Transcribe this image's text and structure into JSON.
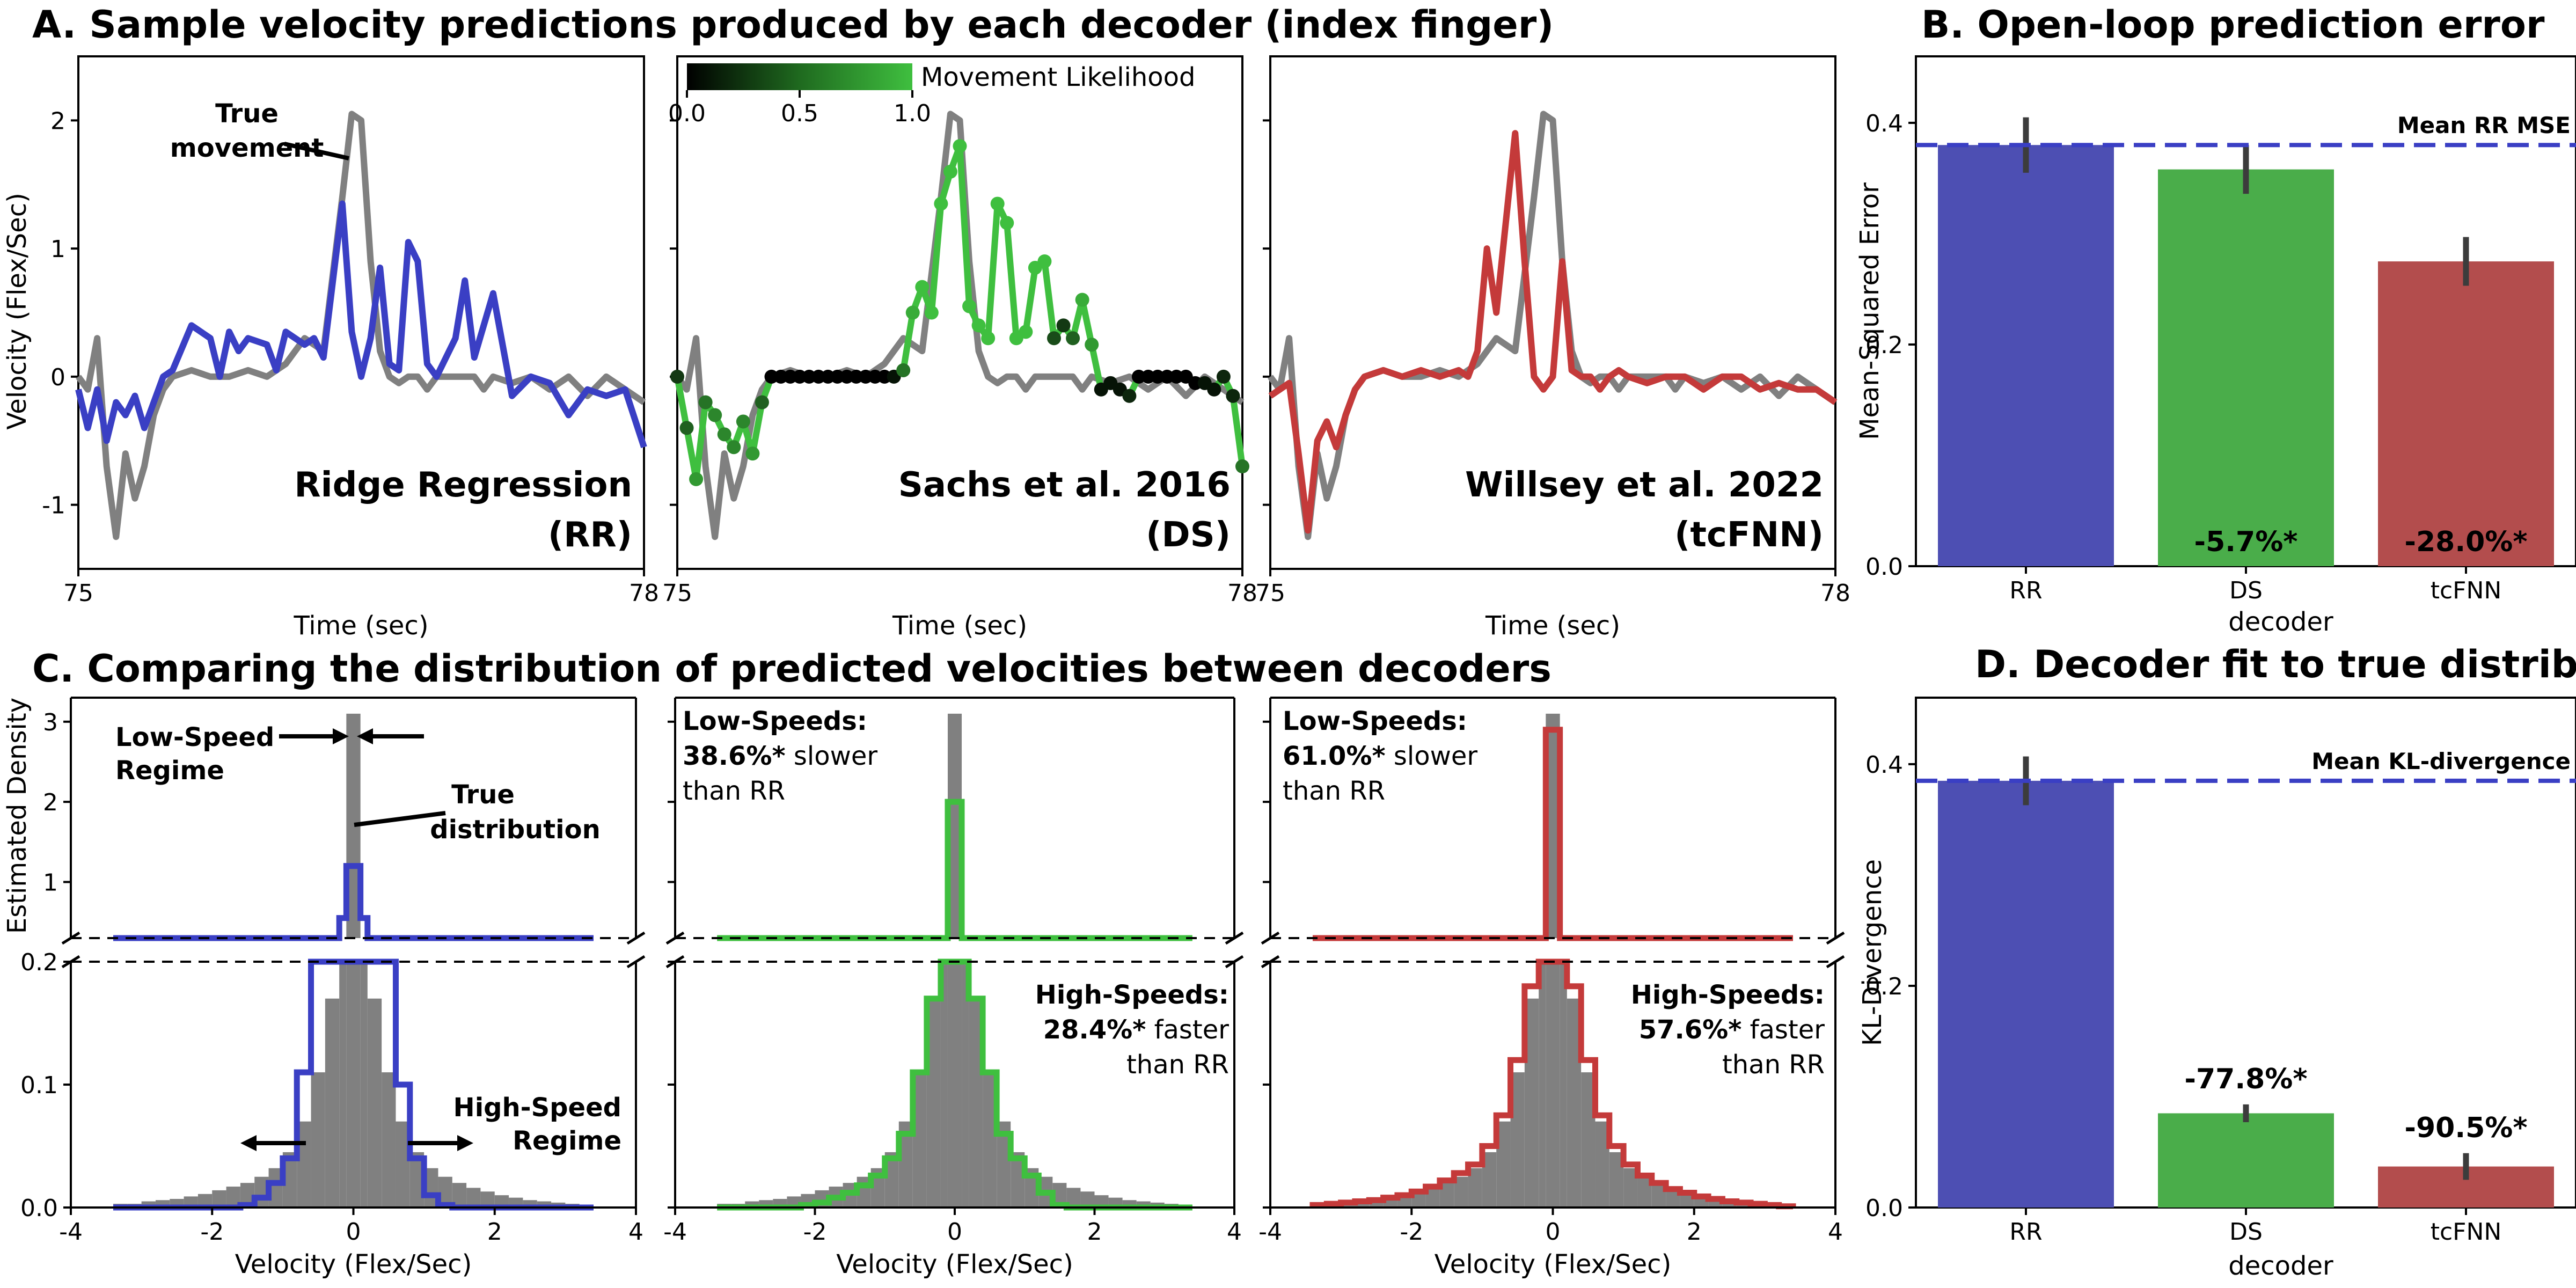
{
  "panels": {
    "A": {
      "title": "A.   Sample velocity predictions produced by each decoder (index finger)"
    },
    "B": {
      "title": "B. Open-loop prediction error"
    },
    "C": {
      "title": "C. Comparing the distribution of predicted velocities between decoders"
    },
    "D": {
      "title": "D. Decoder fit to true distribution"
    }
  },
  "colors": {
    "true": "#808080",
    "RR": "#3a3fc4",
    "DS": "#3fbf3f",
    "tcFNN": "#c43a3a",
    "RR_bar": "#4d4fb3",
    "DS_bar": "#4aad4a",
    "tcFNN_bar": "#b34d4d"
  },
  "chart_data": [
    {
      "id": "A",
      "type": "line",
      "xlabel": "Time (sec)",
      "ylabel": "Velocity (Flex/Sec)",
      "xlim": [
        75,
        78
      ],
      "ylim": [
        -1.5,
        2.5
      ],
      "xticks": [
        "75",
        "78"
      ],
      "yticks": [
        "-1",
        "0",
        "1",
        "2"
      ],
      "colorbar": {
        "label": "Movement Likelihood",
        "ticks": [
          "0.0",
          "0.5",
          "1.0"
        ]
      },
      "annotation": {
        "text": [
          "True",
          "movement"
        ]
      },
      "subplots": [
        {
          "decoder": "RR",
          "label": [
            "Ridge Regression",
            "(RR)"
          ],
          "color": "#3a3fc4"
        },
        {
          "decoder": "DS",
          "label": [
            "Sachs et al. 2016",
            "(DS)"
          ],
          "color": "#3fbf3f"
        },
        {
          "decoder": "tcFNN",
          "label": [
            "Willsey et al. 2022",
            "(tcFNN)"
          ],
          "color": "#c43a3a"
        }
      ],
      "series": [
        {
          "name": "True movement",
          "decoder": "true",
          "x": [
            75.0,
            75.05,
            75.1,
            75.15,
            75.2,
            75.25,
            75.3,
            75.35,
            75.4,
            75.45,
            75.5,
            75.6,
            75.7,
            75.8,
            75.9,
            76.0,
            76.1,
            76.2,
            76.3,
            76.4,
            76.45,
            76.5,
            76.55,
            76.6,
            76.65,
            76.7,
            76.75,
            76.8,
            76.85,
            76.9,
            77.0,
            77.1,
            77.15,
            77.2,
            77.3,
            77.4,
            77.5,
            77.6,
            77.7,
            77.8,
            77.9,
            78.0
          ],
          "values": [
            0.0,
            -0.1,
            0.3,
            -0.7,
            -1.25,
            -0.6,
            -0.95,
            -0.7,
            -0.3,
            -0.1,
            0.0,
            0.05,
            0.0,
            0.0,
            0.05,
            0.0,
            0.1,
            0.3,
            0.2,
            1.4,
            2.05,
            2.0,
            0.9,
            0.2,
            0.0,
            -0.05,
            0.0,
            0.0,
            -0.1,
            0.0,
            0.0,
            0.0,
            -0.1,
            0.0,
            -0.05,
            0.0,
            -0.1,
            0.0,
            -0.15,
            0.0,
            -0.1,
            -0.2
          ]
        },
        {
          "name": "RR",
          "decoder": "RR",
          "x": [
            75.0,
            75.05,
            75.1,
            75.15,
            75.2,
            75.25,
            75.3,
            75.35,
            75.4,
            75.45,
            75.5,
            75.6,
            75.7,
            75.75,
            75.8,
            75.85,
            75.9,
            76.0,
            76.05,
            76.1,
            76.2,
            76.25,
            76.3,
            76.35,
            76.4,
            76.45,
            76.5,
            76.55,
            76.6,
            76.65,
            76.7,
            76.75,
            76.8,
            76.85,
            76.9,
            77.0,
            77.05,
            77.1,
            77.2,
            77.3,
            77.4,
            77.5,
            77.6,
            77.7,
            77.8,
            77.9,
            78.0
          ],
          "values": [
            -0.1,
            -0.4,
            -0.1,
            -0.5,
            -0.2,
            -0.3,
            -0.15,
            -0.4,
            -0.2,
            0.0,
            0.05,
            0.4,
            0.3,
            0.0,
            0.35,
            0.2,
            0.3,
            0.25,
            0.05,
            0.35,
            0.25,
            0.3,
            0.15,
            0.75,
            1.35,
            0.35,
            0.0,
            0.3,
            0.85,
            0.1,
            0.05,
            1.05,
            0.9,
            0.1,
            0.0,
            0.3,
            0.75,
            0.15,
            0.65,
            -0.15,
            0.0,
            -0.05,
            -0.3,
            -0.1,
            -0.15,
            -0.1,
            -0.55
          ]
        },
        {
          "name": "DS",
          "decoder": "DS",
          "x": [
            75.0,
            75.05,
            75.1,
            75.15,
            75.2,
            75.25,
            75.3,
            75.35,
            75.4,
            75.45,
            75.5,
            75.55,
            75.6,
            75.65,
            75.7,
            75.75,
            75.8,
            75.85,
            75.9,
            75.95,
            76.0,
            76.05,
            76.1,
            76.15,
            76.2,
            76.25,
            76.3,
            76.35,
            76.4,
            76.45,
            76.5,
            76.55,
            76.6,
            76.65,
            76.7,
            76.75,
            76.8,
            76.85,
            76.9,
            76.95,
            77.0,
            77.05,
            77.1,
            77.15,
            77.2,
            77.25,
            77.3,
            77.35,
            77.4,
            77.45,
            77.5,
            77.55,
            77.6,
            77.65,
            77.7,
            77.75,
            77.8,
            77.85,
            77.9,
            77.95,
            78.0
          ],
          "values": [
            0.0,
            -0.4,
            -0.8,
            -0.2,
            -0.3,
            -0.45,
            -0.55,
            -0.35,
            -0.6,
            -0.2,
            0.0,
            0.0,
            0.0,
            0.0,
            0.0,
            0.0,
            0.0,
            0.0,
            0.0,
            0.0,
            0.0,
            0.0,
            0.0,
            0.0,
            0.05,
            0.5,
            0.7,
            0.5,
            1.35,
            1.6,
            1.8,
            0.55,
            0.4,
            0.3,
            1.35,
            1.2,
            0.3,
            0.35,
            0.85,
            0.9,
            0.3,
            0.4,
            0.3,
            0.6,
            0.25,
            -0.1,
            -0.05,
            -0.1,
            -0.15,
            0.0,
            0.0,
            0.0,
            0.0,
            0.0,
            0.0,
            -0.05,
            -0.05,
            -0.1,
            0.0,
            -0.15,
            -0.7
          ],
          "likelihood": [
            0.3,
            0.5,
            0.8,
            0.6,
            0.7,
            0.7,
            0.7,
            0.7,
            0.8,
            0.5,
            0.0,
            0.0,
            0.0,
            0.0,
            0.0,
            0.0,
            0.0,
            0.0,
            0.0,
            0.0,
            0.0,
            0.0,
            0.0,
            0.1,
            0.6,
            0.9,
            1.0,
            1.0,
            1.0,
            1.0,
            1.0,
            1.0,
            1.0,
            1.0,
            1.0,
            1.0,
            1.0,
            1.0,
            1.0,
            1.0,
            0.4,
            0.3,
            0.5,
            0.9,
            0.8,
            0.1,
            0.1,
            0.1,
            0.2,
            0.0,
            0.0,
            0.0,
            0.0,
            0.0,
            0.0,
            0.0,
            0.1,
            0.1,
            0.2,
            0.2,
            0.6
          ]
        },
        {
          "name": "tcFNN",
          "decoder": "tcFNN",
          "x": [
            75.0,
            75.05,
            75.1,
            75.15,
            75.2,
            75.25,
            75.3,
            75.35,
            75.4,
            75.45,
            75.5,
            75.6,
            75.7,
            75.8,
            75.9,
            76.0,
            76.05,
            76.1,
            76.15,
            76.2,
            76.25,
            76.3,
            76.35,
            76.4,
            76.45,
            76.5,
            76.55,
            76.6,
            76.65,
            76.7,
            76.75,
            76.8,
            76.85,
            76.9,
            77.0,
            77.1,
            77.2,
            77.3,
            77.4,
            77.5,
            77.6,
            77.7,
            77.8,
            77.9,
            78.0
          ],
          "values": [
            -0.15,
            -0.1,
            -0.05,
            -0.6,
            -1.2,
            -0.5,
            -0.35,
            -0.55,
            -0.3,
            -0.1,
            0.0,
            0.05,
            0.0,
            0.05,
            0.0,
            0.05,
            0.0,
            0.2,
            1.0,
            0.5,
            1.2,
            1.9,
            0.9,
            0.0,
            -0.1,
            0.0,
            0.9,
            0.05,
            0.0,
            0.0,
            -0.1,
            0.0,
            0.05,
            0.0,
            -0.05,
            0.0,
            0.0,
            -0.1,
            0.0,
            0.0,
            -0.1,
            -0.05,
            -0.1,
            -0.1,
            -0.2
          ]
        }
      ]
    },
    {
      "id": "B",
      "type": "bar",
      "categories": [
        "RR",
        "DS",
        "tcFNN"
      ],
      "values": [
        0.38,
        0.358,
        0.275
      ],
      "errors": [
        0.025,
        0.022,
        0.022
      ],
      "bar_labels": [
        "",
        "-5.7%*",
        "-28.0%*"
      ],
      "xlabel": "decoder",
      "ylabel": "Mean-Squared Error",
      "ylim": [
        0.0,
        0.46
      ],
      "yticks": [
        "0.0",
        "0.2",
        "0.4"
      ],
      "reference_line": {
        "label": "Mean RR MSE",
        "value": 0.38
      }
    },
    {
      "id": "C",
      "type": "bar",
      "xlabel": "Velocity (Flex/Sec)",
      "ylabel": "Estimated Density",
      "xlim": [
        -4,
        4
      ],
      "xticks": [
        "-4",
        "-2",
        "0",
        "2",
        "4"
      ],
      "broken_axis": {
        "upper_range": [
          0.3,
          3.3
        ],
        "upper_ticks": [
          "1",
          "2",
          "3"
        ],
        "lower_range": [
          0.0,
          0.2
        ],
        "lower_ticks": [
          "0.0",
          "0.1",
          "0.2"
        ]
      },
      "bin_edges": [
        -3.4,
        -3.2,
        -3.0,
        -2.8,
        -2.6,
        -2.4,
        -2.2,
        -2.0,
        -1.8,
        -1.6,
        -1.4,
        -1.2,
        -1.0,
        -0.8,
        -0.6,
        -0.4,
        -0.2,
        -0.1,
        0.1,
        0.2,
        0.4,
        0.6,
        0.8,
        1.0,
        1.2,
        1.4,
        1.6,
        1.8,
        2.0,
        2.2,
        2.4,
        2.6,
        2.8,
        3.0,
        3.2,
        3.4
      ],
      "true_density": [
        0.003,
        0.003,
        0.005,
        0.006,
        0.007,
        0.009,
        0.011,
        0.014,
        0.017,
        0.02,
        0.025,
        0.032,
        0.045,
        0.07,
        0.11,
        0.17,
        0.23,
        3.1,
        0.23,
        0.17,
        0.11,
        0.07,
        0.045,
        0.032,
        0.025,
        0.02,
        0.016,
        0.013,
        0.01,
        0.008,
        0.006,
        0.005,
        0.004,
        0.003,
        0.002
      ],
      "subplots": [
        {
          "decoder": "RR",
          "color": "#3a3fc4",
          "density": [
            0.0,
            0.0,
            0.0,
            0.0,
            0.0,
            0.0,
            0.0,
            0.0,
            0.0,
            0.002,
            0.008,
            0.02,
            0.04,
            0.11,
            0.2,
            0.3,
            0.55,
            1.2,
            0.55,
            0.3,
            0.2,
            0.1,
            0.04,
            0.01,
            0.002,
            0.0,
            0.0,
            0.0,
            0.0,
            0.0,
            0.0,
            0.0,
            0.0,
            0.0,
            0.0
          ],
          "annotations": {
            "low_regime": [
              "Low-Speed",
              "Regime"
            ],
            "true_dist": [
              "True",
              "distribution"
            ],
            "high_regime": [
              "High-Speed",
              "Regime"
            ]
          }
        },
        {
          "decoder": "DS",
          "color": "#3fbf3f",
          "density": [
            0.0,
            0.0,
            0.0,
            0.0,
            0.0,
            0.0,
            0.002,
            0.004,
            0.008,
            0.012,
            0.018,
            0.026,
            0.04,
            0.06,
            0.11,
            0.17,
            0.25,
            2.0,
            0.25,
            0.17,
            0.11,
            0.06,
            0.04,
            0.026,
            0.012,
            0.002,
            0.0,
            0.0,
            0.0,
            0.0,
            0.0,
            0.0,
            0.0,
            0.0,
            0.0
          ],
          "low_text": {
            "title": "Low-Speeds:",
            "pct": "38.6%*",
            "rest1": " slower",
            "rest2": "than RR"
          },
          "high_text": {
            "title": "High-Speeds:",
            "pct": "28.4%*",
            "rest1": " faster",
            "rest2": "than RR"
          }
        },
        {
          "decoder": "tcFNN",
          "color": "#c43a3a",
          "density": [
            0.002,
            0.003,
            0.004,
            0.005,
            0.006,
            0.008,
            0.01,
            0.013,
            0.017,
            0.022,
            0.028,
            0.035,
            0.05,
            0.075,
            0.12,
            0.18,
            0.25,
            2.9,
            0.25,
            0.18,
            0.12,
            0.075,
            0.05,
            0.035,
            0.026,
            0.02,
            0.015,
            0.012,
            0.009,
            0.007,
            0.005,
            0.004,
            0.003,
            0.002,
            0.001
          ],
          "low_text": {
            "title": "Low-Speeds:",
            "pct": "61.0%*",
            "rest1": " slower",
            "rest2": "than RR"
          },
          "high_text": {
            "title": "High-Speeds:",
            "pct": "57.6%*",
            "rest1": " faster",
            "rest2": "than RR"
          }
        }
      ]
    },
    {
      "id": "D",
      "type": "bar",
      "categories": [
        "RR",
        "DS",
        "tcFNN"
      ],
      "values": [
        0.385,
        0.085,
        0.037
      ],
      "errors": [
        0.022,
        0.008,
        0.012
      ],
      "bar_labels": [
        "",
        "-77.8%*",
        "-90.5%*"
      ],
      "xlabel": "decoder",
      "ylabel": "KL-Divergence",
      "ylim": [
        0.0,
        0.46
      ],
      "yticks": [
        "0.0",
        "0.2",
        "0.4"
      ],
      "reference_line": {
        "label": "Mean KL-divergence",
        "value": 0.385
      }
    }
  ]
}
